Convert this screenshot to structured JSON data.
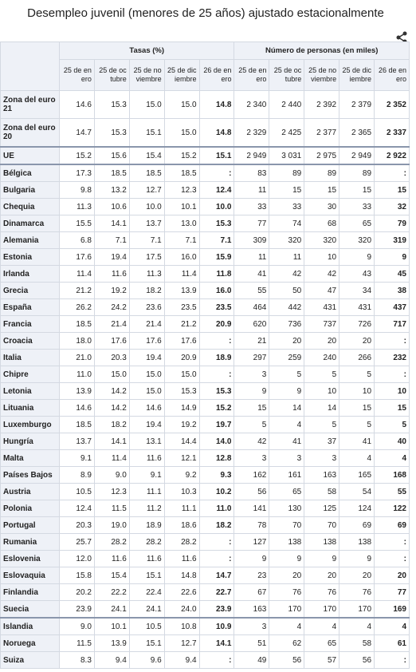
{
  "title": "Desempleo juvenil (menores de 25 años) ajustado estacionalmente",
  "table": {
    "groups": [
      "Tasas (%)",
      "Número de personas (en miles)"
    ],
    "columns": [
      "25 de enero",
      "25 de octubre",
      "25 de noviembre",
      "25 de diciembre",
      "26 de enero"
    ],
    "rows": [
      [
        "Zona del euro 21",
        "14.6",
        "15.3",
        "15.0",
        "15.0",
        "14.8",
        "2 340",
        "2 440",
        "2 392",
        "2 379",
        "2 352"
      ],
      [
        "Zona del euro 20",
        "14.7",
        "15.3",
        "15.1",
        "15.0",
        "14.8",
        "2 329",
        "2 425",
        "2 377",
        "2 365",
        "2 337"
      ],
      [
        "UE",
        "15.2",
        "15.6",
        "15.4",
        "15.2",
        "15.1",
        "2 949",
        "3 031",
        "2 975",
        "2 949",
        "2 922"
      ],
      [
        "Bélgica",
        "17.3",
        "18.5",
        "18.5",
        "18.5",
        ":",
        "83",
        "89",
        "89",
        "89",
        ":"
      ],
      [
        "Bulgaria",
        "9.8",
        "13.2",
        "12.7",
        "12.3",
        "12.4",
        "11",
        "15",
        "15",
        "15",
        "15"
      ],
      [
        "Chequia",
        "11.3",
        "10.6",
        "10.0",
        "10.1",
        "10.0",
        "33",
        "33",
        "30",
        "33",
        "32"
      ],
      [
        "Dinamarca",
        "15.5",
        "14.1",
        "13.7",
        "13.0",
        "15.3",
        "77",
        "74",
        "68",
        "65",
        "79"
      ],
      [
        "Alemania",
        "6.8",
        "7.1",
        "7.1",
        "7.1",
        "7.1",
        "309",
        "320",
        "320",
        "320",
        "319"
      ],
      [
        "Estonia",
        "17.6",
        "19.4",
        "17.5",
        "16.0",
        "15.9",
        "11",
        "11",
        "10",
        "9",
        "9"
      ],
      [
        "Irlanda",
        "11.4",
        "11.6",
        "11.3",
        "11.4",
        "11.8",
        "41",
        "42",
        "42",
        "43",
        "45"
      ],
      [
        "Grecia",
        "21.2",
        "19.2",
        "18.2",
        "13.9",
        "16.0",
        "55",
        "50",
        "47",
        "34",
        "38"
      ],
      [
        "España",
        "26.2",
        "24.2",
        "23.6",
        "23.5",
        "23.5",
        "464",
        "442",
        "431",
        "431",
        "437"
      ],
      [
        "Francia",
        "18.5",
        "21.4",
        "21.4",
        "21.2",
        "20.9",
        "620",
        "736",
        "737",
        "726",
        "717"
      ],
      [
        "Croacia",
        "18.0",
        "17.6",
        "17.6",
        "17.6",
        ":",
        "21",
        "20",
        "20",
        "20",
        ":"
      ],
      [
        "Italia",
        "21.0",
        "20.3",
        "19.4",
        "20.9",
        "18.9",
        "297",
        "259",
        "240",
        "266",
        "232"
      ],
      [
        "Chipre",
        "11.0",
        "15.0",
        "15.0",
        "15.0",
        ":",
        "3",
        "5",
        "5",
        "5",
        ":"
      ],
      [
        "Letonia",
        "13.9",
        "14.2",
        "15.0",
        "15.3",
        "15.3",
        "9",
        "9",
        "10",
        "10",
        "10"
      ],
      [
        "Lituania",
        "14.6",
        "14.2",
        "14.6",
        "14.9",
        "15.2",
        "15",
        "14",
        "14",
        "15",
        "15"
      ],
      [
        "Luxemburgo",
        "18.5",
        "18.2",
        "19.4",
        "19.2",
        "19.7",
        "5",
        "4",
        "5",
        "5",
        "5"
      ],
      [
        "Hungría",
        "13.7",
        "14.1",
        "13.1",
        "14.4",
        "14.0",
        "42",
        "41",
        "37",
        "41",
        "40"
      ],
      [
        "Malta",
        "9.1",
        "11.4",
        "11.6",
        "12.1",
        "12.8",
        "3",
        "3",
        "3",
        "4",
        "4"
      ],
      [
        "Países Bajos",
        "8.9",
        "9.0",
        "9.1",
        "9.2",
        "9.3",
        "162",
        "161",
        "163",
        "165",
        "168"
      ],
      [
        "Austria",
        "10.5",
        "12.3",
        "11.1",
        "10.3",
        "10.2",
        "56",
        "65",
        "58",
        "54",
        "55"
      ],
      [
        "Polonia",
        "12.4",
        "11.5",
        "11.2",
        "11.1",
        "11.0",
        "141",
        "130",
        "125",
        "124",
        "122"
      ],
      [
        "Portugal",
        "20.3",
        "19.0",
        "18.9",
        "18.6",
        "18.2",
        "78",
        "70",
        "70",
        "69",
        "69"
      ],
      [
        "Rumania",
        "25.7",
        "28.2",
        "28.2",
        "28.2",
        ":",
        "127",
        "138",
        "138",
        "138",
        ":"
      ],
      [
        "Eslovenia",
        "12.0",
        "11.6",
        "11.6",
        "11.6",
        ":",
        "9",
        "9",
        "9",
        "9",
        ":"
      ],
      [
        "Eslovaquia",
        "15.8",
        "15.4",
        "15.1",
        "14.8",
        "14.7",
        "23",
        "20",
        "20",
        "20",
        "20"
      ],
      [
        "Finlandia",
        "20.2",
        "22.2",
        "22.4",
        "22.6",
        "22.7",
        "67",
        "76",
        "76",
        "76",
        "77"
      ],
      [
        "Suecia",
        "23.9",
        "24.1",
        "24.1",
        "24.0",
        "23.9",
        "163",
        "170",
        "170",
        "170",
        "169"
      ],
      [
        "Islandia",
        "9.0",
        "10.1",
        "10.5",
        "10.8",
        "10.9",
        "3",
        "4",
        "4",
        "4",
        "4"
      ],
      [
        "Noruega",
        "11.5",
        "13.9",
        "15.1",
        "12.7",
        "14.1",
        "51",
        "62",
        "65",
        "58",
        "61"
      ],
      [
        "Suiza",
        "8.3",
        "9.4",
        "9.6",
        "9.4",
        ":",
        "49",
        "56",
        "57",
        "56",
        ":"
      ]
    ]
  }
}
